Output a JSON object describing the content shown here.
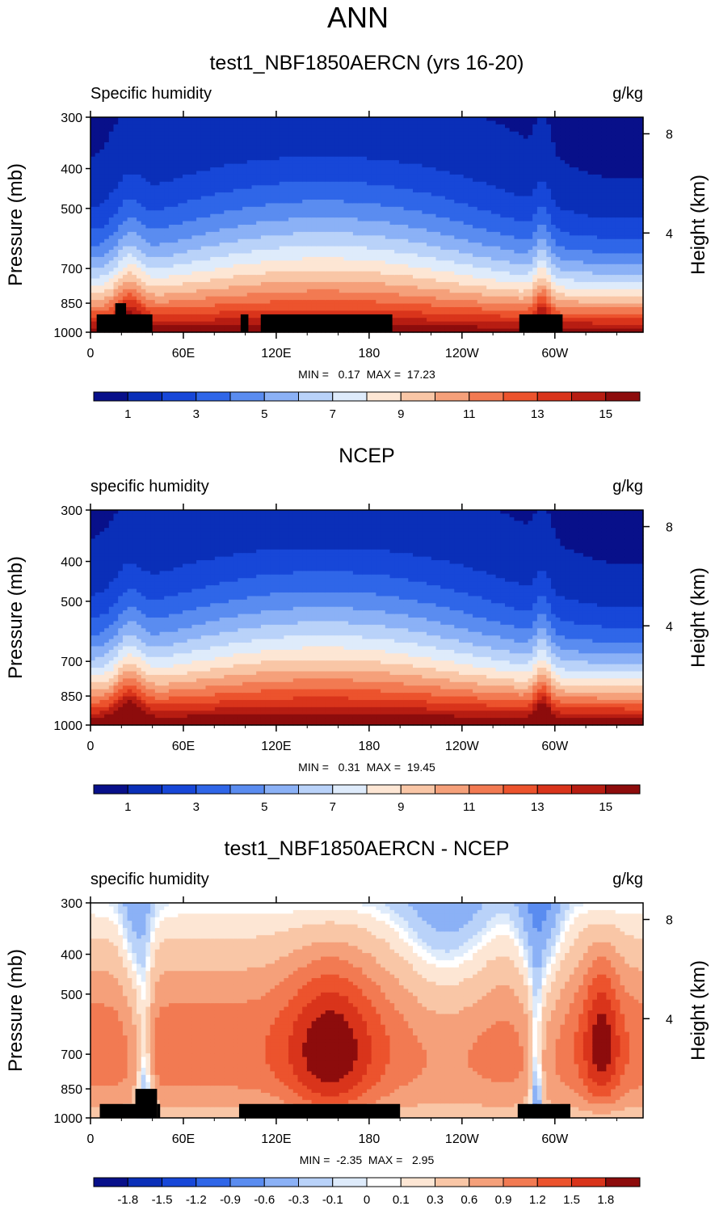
{
  "figure": {
    "title": "ANN"
  },
  "chart_data": [
    {
      "type": "contour",
      "title": "test1_NBF1850AERCN (yrs 16-20)",
      "variable_label": "Specific humidity",
      "units_label": "g/kg",
      "ylabel": "Pressure (mb)",
      "y2label": "Height (km)",
      "x_ticks": [
        "0",
        "60E",
        "120E",
        "180",
        "120W",
        "60W"
      ],
      "x_tick_values": [
        0,
        60,
        120,
        180,
        240,
        300
      ],
      "xlim": [
        0,
        357
      ],
      "y_ticks": [
        "300",
        "400",
        "500",
        "700",
        "850",
        "1000"
      ],
      "y_tick_values": [
        300,
        400,
        500,
        700,
        850,
        1000
      ],
      "ylim": [
        300,
        1000
      ],
      "y2_ticks": [
        "8",
        "4"
      ],
      "y2_tick_values": [
        8,
        4
      ],
      "min_max_text": "MIN =   0.17  MAX =  17.23",
      "min": 0.17,
      "max": 17.23,
      "colorbar_labels": [
        "1",
        "3",
        "5",
        "7",
        "9",
        "11",
        "13",
        "15"
      ],
      "colorbar_colors": [
        "#08108a",
        "#0a2fb8",
        "#1747d8",
        "#2f66e8",
        "#5a8cf0",
        "#8bb1f6",
        "#b9d2f9",
        "#deebfb",
        "#fde6d4",
        "#f9c6a6",
        "#f5a07a",
        "#f27a52",
        "#ec532d",
        "#d9341b",
        "#b71d12",
        "#8d0c0c"
      ],
      "terrain": [
        [
          4,
          36,
          905
        ],
        [
          16,
          23,
          850
        ],
        [
          26,
          40,
          905
        ],
        [
          97,
          102,
          905
        ],
        [
          110,
          195,
          905
        ],
        [
          277,
          305,
          905
        ]
      ]
    },
    {
      "type": "contour",
      "title": "NCEP",
      "variable_label": "specific humidity",
      "units_label": "g/kg",
      "ylabel": "Pressure (mb)",
      "y2label": "Height (km)",
      "x_ticks": [
        "0",
        "60E",
        "120E",
        "180",
        "120W",
        "60W"
      ],
      "x_tick_values": [
        0,
        60,
        120,
        180,
        240,
        300
      ],
      "xlim": [
        0,
        357
      ],
      "y_ticks": [
        "300",
        "400",
        "500",
        "700",
        "850",
        "1000"
      ],
      "y_tick_values": [
        300,
        400,
        500,
        700,
        850,
        1000
      ],
      "ylim": [
        300,
        1000
      ],
      "y2_ticks": [
        "8",
        "4"
      ],
      "y2_tick_values": [
        8,
        4
      ],
      "min_max_text": "MIN =   0.31  MAX =  19.45",
      "min": 0.31,
      "max": 19.45,
      "colorbar_labels": [
        "1",
        "3",
        "5",
        "7",
        "9",
        "11",
        "13",
        "15"
      ],
      "colorbar_colors": [
        "#08108a",
        "#0a2fb8",
        "#1747d8",
        "#2f66e8",
        "#5a8cf0",
        "#8bb1f6",
        "#b9d2f9",
        "#deebfb",
        "#fde6d4",
        "#f9c6a6",
        "#f5a07a",
        "#f27a52",
        "#ec532d",
        "#d9341b",
        "#b71d12",
        "#8d0c0c"
      ],
      "terrain": []
    },
    {
      "type": "contour",
      "title": "test1_NBF1850AERCN - NCEP",
      "variable_label": "specific humidity",
      "units_label": "g/kg",
      "ylabel": "Pressure (mb)",
      "y2label": "Height (km)",
      "x_ticks": [
        "0",
        "60E",
        "120E",
        "180",
        "120W",
        "60W"
      ],
      "x_tick_values": [
        0,
        60,
        120,
        180,
        240,
        300
      ],
      "xlim": [
        0,
        357
      ],
      "y_ticks": [
        "300",
        "400",
        "500",
        "700",
        "850",
        "1000"
      ],
      "y_tick_values": [
        300,
        400,
        500,
        700,
        850,
        1000
      ],
      "ylim": [
        300,
        1000
      ],
      "y2_ticks": [
        "8",
        "4"
      ],
      "y2_tick_values": [
        8,
        4
      ],
      "min_max_text": "MIN =  -2.35  MAX =   2.95",
      "min": -2.35,
      "max": 2.95,
      "colorbar_labels": [
        "-1.8",
        "-1.5",
        "-1.2",
        "-0.9",
        "-0.6",
        "-0.3",
        "-0.1",
        "0",
        "0.1",
        "0.3",
        "0.6",
        "0.9",
        "1.2",
        "1.5",
        "1.8"
      ],
      "colorbar_colors": [
        "#08108a",
        "#0a2fb8",
        "#1747d8",
        "#2f66e8",
        "#5a8cf0",
        "#8bb1f6",
        "#b9d2f9",
        "#deebfb",
        "#ffffff",
        "#fde6d4",
        "#f9c6a6",
        "#f5a07a",
        "#f27a52",
        "#ec532d",
        "#d9341b",
        "#8d0c0c"
      ],
      "terrain": [
        [
          6,
          30,
          925
        ],
        [
          29,
          43,
          850
        ],
        [
          43,
          45,
          925
        ],
        [
          96,
          200,
          925
        ],
        [
          276,
          310,
          925
        ]
      ]
    }
  ]
}
